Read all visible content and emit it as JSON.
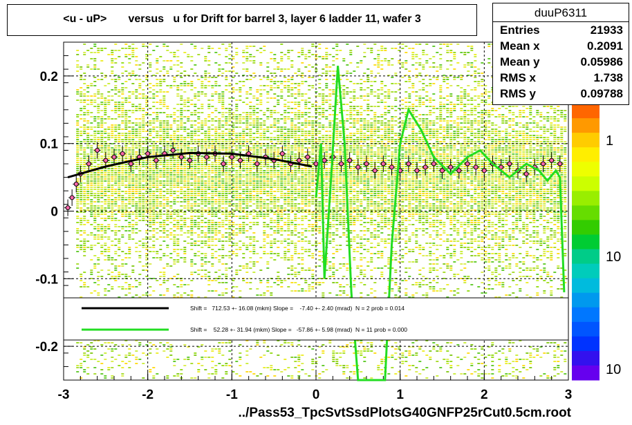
{
  "title": "<u - uP>       versus   u for Drift for barrel 3, layer 6 ladder 11, wafer 3",
  "stats": {
    "name": "duuP6311",
    "rows": [
      {
        "label": "Entries",
        "value": "21933"
      },
      {
        "label": "Mean x",
        "value": "0.2091"
      },
      {
        "label": "Mean y",
        "value": "0.05986"
      },
      {
        "label": "RMS x",
        "value": "1.738"
      },
      {
        "label": "RMS y",
        "value": "0.09788"
      }
    ]
  },
  "legend": [
    {
      "text": "Shift =   712.53 +- 16.08 (mkm) Slope =    -7.40 +- 2.40 (mrad)  N = 2 prob = 0.014",
      "color": "#000000"
    },
    {
      "text": "Shift =    52.28 +- 31.94 (mkm) Slope =   -57.86 +- 5.98 (mrad)  N = 11 prob = 0.000",
      "color": "#22dd22"
    }
  ],
  "footer": "../Pass53_TpcSvtSsdPlotsG40GNFP25rCut0.5cm.root",
  "chart_data": {
    "type": "heatmap",
    "xlim": [
      -3,
      3
    ],
    "ylim": [
      -0.25,
      0.25
    ],
    "x_ticks": [
      "-3",
      "-2",
      "-1",
      "0",
      "1",
      "2",
      "3"
    ],
    "y_ticks": [
      "-0.2",
      "-0.1",
      "0",
      "0.1",
      "0.2"
    ],
    "grid": true,
    "colorbar_ticks": [
      "1",
      "10",
      "10"
    ],
    "profile_points": [
      {
        "x": -2.95,
        "y": 0.005
      },
      {
        "x": -2.9,
        "y": 0.02
      },
      {
        "x": -2.85,
        "y": 0.04
      },
      {
        "x": -2.8,
        "y": 0.055
      },
      {
        "x": -2.7,
        "y": 0.07
      },
      {
        "x": -2.6,
        "y": 0.09
      },
      {
        "x": -2.5,
        "y": 0.075
      },
      {
        "x": -2.4,
        "y": 0.08
      },
      {
        "x": -2.3,
        "y": 0.085
      },
      {
        "x": -2.2,
        "y": 0.07
      },
      {
        "x": -2.1,
        "y": 0.08
      },
      {
        "x": -2.0,
        "y": 0.085
      },
      {
        "x": -1.9,
        "y": 0.075
      },
      {
        "x": -1.8,
        "y": 0.085
      },
      {
        "x": -1.7,
        "y": 0.09
      },
      {
        "x": -1.6,
        "y": 0.08
      },
      {
        "x": -1.5,
        "y": 0.075
      },
      {
        "x": -1.4,
        "y": 0.085
      },
      {
        "x": -1.3,
        "y": 0.08
      },
      {
        "x": -1.2,
        "y": 0.085
      },
      {
        "x": -1.1,
        "y": 0.07
      },
      {
        "x": -1.0,
        "y": 0.08
      },
      {
        "x": -0.9,
        "y": 0.075
      },
      {
        "x": -0.8,
        "y": 0.085
      },
      {
        "x": -0.7,
        "y": 0.07
      },
      {
        "x": -0.6,
        "y": 0.08
      },
      {
        "x": -0.5,
        "y": 0.075
      },
      {
        "x": -0.4,
        "y": 0.085
      },
      {
        "x": -0.3,
        "y": 0.07
      },
      {
        "x": -0.2,
        "y": 0.075
      },
      {
        "x": -0.1,
        "y": 0.08
      },
      {
        "x": 0.0,
        "y": 0.07
      },
      {
        "x": 0.1,
        "y": 0.075
      },
      {
        "x": 0.2,
        "y": 0.08
      },
      {
        "x": 0.3,
        "y": 0.07
      },
      {
        "x": 0.4,
        "y": 0.075
      },
      {
        "x": 0.5,
        "y": 0.065
      },
      {
        "x": 0.6,
        "y": 0.07
      },
      {
        "x": 0.7,
        "y": 0.06
      },
      {
        "x": 0.8,
        "y": 0.07
      },
      {
        "x": 0.9,
        "y": 0.065
      },
      {
        "x": 1.0,
        "y": 0.06
      },
      {
        "x": 1.1,
        "y": 0.07
      },
      {
        "x": 1.2,
        "y": 0.06
      },
      {
        "x": 1.3,
        "y": 0.065
      },
      {
        "x": 1.4,
        "y": 0.07
      },
      {
        "x": 1.5,
        "y": 0.06
      },
      {
        "x": 1.6,
        "y": 0.065
      },
      {
        "x": 1.7,
        "y": 0.06
      },
      {
        "x": 1.8,
        "y": 0.07
      },
      {
        "x": 1.9,
        "y": 0.065
      },
      {
        "x": 2.0,
        "y": 0.06
      },
      {
        "x": 2.1,
        "y": 0.07
      },
      {
        "x": 2.2,
        "y": 0.065
      },
      {
        "x": 2.3,
        "y": 0.07
      },
      {
        "x": 2.4,
        "y": 0.06
      },
      {
        "x": 2.5,
        "y": 0.055
      },
      {
        "x": 2.6,
        "y": 0.065
      },
      {
        "x": 2.7,
        "y": 0.07
      },
      {
        "x": 2.8,
        "y": 0.075
      },
      {
        "x": 2.9,
        "y": 0.07
      }
    ],
    "fit_black": [
      {
        "x": -2.95,
        "y": 0.05
      },
      {
        "x": -2.5,
        "y": 0.066
      },
      {
        "x": -2.0,
        "y": 0.08
      },
      {
        "x": -1.5,
        "y": 0.086
      },
      {
        "x": -1.0,
        "y": 0.085
      },
      {
        "x": -0.5,
        "y": 0.077
      },
      {
        "x": -0.05,
        "y": 0.066
      }
    ],
    "fit_green": [
      {
        "x": 0.0,
        "y": 0.02
      },
      {
        "x": 0.06,
        "y": 0.1
      },
      {
        "x": 0.1,
        "y": -0.1
      },
      {
        "x": 0.18,
        "y": 0.05
      },
      {
        "x": 0.26,
        "y": 0.215
      },
      {
        "x": 0.34,
        "y": 0.1
      },
      {
        "x": 0.42,
        "y": -0.12
      },
      {
        "x": 0.5,
        "y": -0.25
      },
      {
        "x": 0.82,
        "y": -0.25
      },
      {
        "x": 0.9,
        "y": -0.05
      },
      {
        "x": 1.0,
        "y": 0.1
      },
      {
        "x": 1.1,
        "y": 0.15
      },
      {
        "x": 1.25,
        "y": 0.12
      },
      {
        "x": 1.4,
        "y": 0.08
      },
      {
        "x": 1.6,
        "y": 0.055
      },
      {
        "x": 1.8,
        "y": 0.08
      },
      {
        "x": 1.95,
        "y": 0.09
      },
      {
        "x": 2.1,
        "y": 0.07
      },
      {
        "x": 2.3,
        "y": 0.05
      },
      {
        "x": 2.5,
        "y": 0.07
      },
      {
        "x": 2.65,
        "y": 0.06
      },
      {
        "x": 2.75,
        "y": 0.045
      },
      {
        "x": 2.85,
        "y": 0.06
      },
      {
        "x": 2.9,
        "y": 0.05
      },
      {
        "x": 2.95,
        "y": -0.12
      }
    ]
  }
}
